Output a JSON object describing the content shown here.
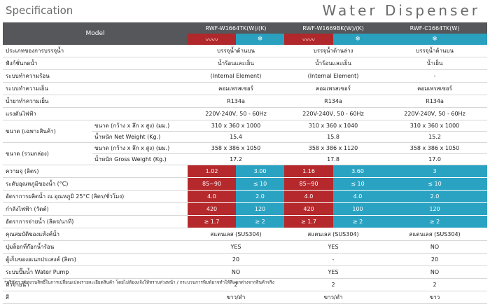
{
  "header": {
    "spec": "Specification",
    "title": "Water Dispenser"
  },
  "model_label": "Model",
  "models": [
    "RWF-W1664TK(W)/(K)",
    "RWF-W1669BK(W)/(K)",
    "RWF-C1664TK(W)"
  ],
  "rows": {
    "bottle": {
      "label": "ประเภทของการบรรจุน้ำ",
      "v": [
        "บรรจุน้ำด้านบน",
        "บรรจุน้ำด้านล่าง",
        "บรรจุน้ำด้านบน"
      ]
    },
    "function": {
      "label": "ฟังก์ชั่นกดน้ำ",
      "v": [
        "น้ำร้อนและเย็น",
        "น้ำร้อนและเย็น",
        "น้ำเย็น"
      ]
    },
    "heating": {
      "label": "ระบบทำความร้อน",
      "v": [
        "(Internal Element)",
        "(Internal Element)",
        "-"
      ]
    },
    "cooling": {
      "label": "ระบบทำความเย็น",
      "v": [
        "คอมเพรสเซอร์",
        "คอมเพรสเซอร์",
        "คอมเพรสเซอร์"
      ]
    },
    "refrigerant": {
      "label": "น้ำยาทำความเย็น",
      "v": [
        "R134a",
        "R134a",
        "R134a"
      ]
    },
    "voltage": {
      "label": "แรงดันไฟฟ้า",
      "v": [
        "220V-240V, 50 - 60Hz",
        "220V-240V, 50 - 60Hz",
        "220V-240V, 50 - 60Hz"
      ]
    },
    "net": {
      "label": "ขนาด (เฉพาะสินค้า)",
      "dim_label": "ขนาด (กว้าง x ลึก x สูง) (มม.)",
      "dim": [
        "310 x 360 x 1000",
        "310 x 360 x 1040",
        "310 x 360 x 1000"
      ],
      "wt_label": "น้ำหนัก Net Weight (Kg.)",
      "wt": [
        "15.4",
        "15.8",
        "15.2"
      ]
    },
    "gross": {
      "label": "ขนาด (รวมกล่อง)",
      "dim_label": "ขนาด (กว้าง x ลึก x สูง) (มม.)",
      "dim": [
        "358 x 386 x 1050",
        "358 x 386 x 1120",
        "358 x 386 x 1050"
      ],
      "wt_label": "น้ำหนัก Gross Weight (Kg.)",
      "wt": [
        "17.2",
        "17.8",
        "17.0"
      ]
    },
    "capacity": {
      "label": "ความจุ (ลิตร)",
      "v": [
        "1.02",
        "3.00",
        "1.16",
        "3.60",
        "3"
      ]
    },
    "temp": {
      "label": "ระดับอุณหภูมิของน้ำ (°C)",
      "v": [
        "85~90",
        "≤ 10",
        "85~90",
        "≤ 10",
        "≤ 10"
      ]
    },
    "production": {
      "label": "อัตราการผลิตน้ำ ณ อุณหภูมิ 25°C (ลิตร/ชั่วโมง)",
      "v": [
        "4.0",
        "2.0",
        "4.0",
        "4.0",
        "2.0"
      ]
    },
    "power": {
      "label": "กำลังไฟฟ้า (วัตต์)",
      "v": [
        "420",
        "120",
        "420",
        "100",
        "120"
      ]
    },
    "flow": {
      "label": "อัตราการจ่ายน้ำ (ลิตร/นาที)",
      "v": [
        "≥ 1.7",
        "≥ 2",
        "≥ 1.7",
        "≥ 2",
        "≥ 2"
      ]
    },
    "tank": {
      "label": "คุณสมบัติของแท้งค์น้ำ",
      "v": [
        "สแตนเลส (SUS304)",
        "สแตนเลส (SUS304)",
        "สแตนเลส (SUS304)"
      ]
    },
    "lock": {
      "label": "ปุ่มล็อกที่ก๊อกน้ำร้อน",
      "v": [
        "YES",
        "YES",
        "NO"
      ]
    },
    "cabinet": {
      "label": "ตู้เก็บของอเนกประสงค์ (ลิตร)",
      "v": [
        "20",
        "-",
        "20"
      ]
    },
    "pump": {
      "label": "ระบบปั๊มน้ำ Water Pump",
      "v": [
        "NO",
        "YES",
        "NO"
      ]
    },
    "taps": {
      "label": "หัวจ่ายน้ำ",
      "v": [
        "2",
        "2",
        "2"
      ]
    },
    "color": {
      "label": "สี",
      "v": [
        "ขาว/ดำ",
        "ขาว/ดำ",
        "ขาว"
      ]
    }
  },
  "footnote": "*บริษัทฯ ขอสงวนสิทธิ์ในการเปลี่ยนแปลงรายละเอียดสินค้า โดยไม่ต้องแจ้งให้ทราบล่วงหน้า / กระบวนการพิมพ์อาจทำให้สีแตกต่างจากสินค้าจริง",
  "icons": {
    "hot": "heat-waves-icon",
    "cold": "snowflake-icon"
  },
  "colors": {
    "header": "#55575a",
    "hot": "#b5292c",
    "cold": "#2aa3c3"
  }
}
